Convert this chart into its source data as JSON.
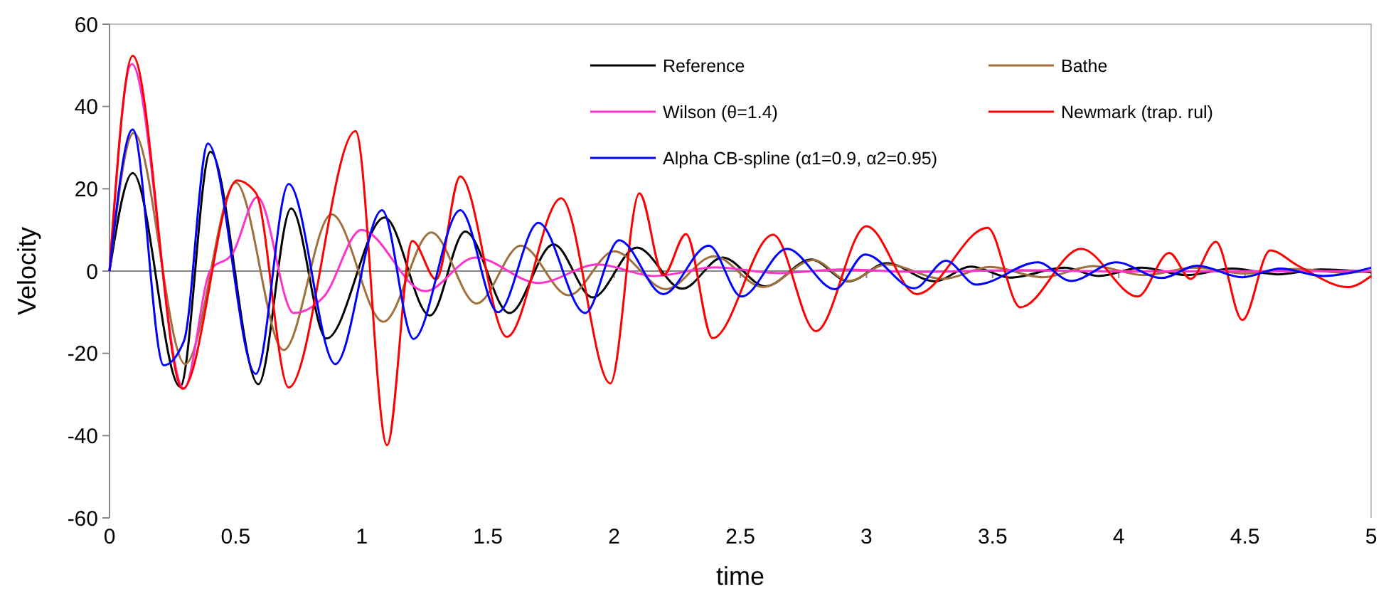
{
  "chart_data": {
    "type": "line",
    "xlabel": "time",
    "ylabel": "Velocity",
    "xlim": [
      0,
      5
    ],
    "ylim": [
      -60,
      60
    ],
    "xticks": [
      0,
      0.5,
      1,
      1.5,
      2,
      2.5,
      3,
      3.5,
      4,
      4.5,
      5
    ],
    "yticks": [
      -60,
      -40,
      -20,
      0,
      20,
      40,
      60
    ],
    "legend": "top",
    "marker": "none",
    "line_style": "solid",
    "series": [
      {
        "name": "Reference",
        "color": "#000000",
        "x": [
          0,
          0.092,
          0.28,
          0.4,
          0.59,
          0.72,
          0.86,
          1.09,
          1.27,
          1.41,
          1.585,
          1.76,
          1.915,
          2.09,
          2.27,
          2.43,
          2.6,
          2.78,
          2.93,
          3.08,
          3.27,
          3.415,
          3.57,
          3.785,
          3.92,
          4.09,
          4.27,
          4.45,
          4.63,
          4.8,
          5
        ],
        "values": [
          0,
          23.8,
          -28.1,
          29,
          -27.5,
          15.2,
          -16.4,
          13,
          -10.8,
          9.6,
          -10.2,
          6.5,
          -6.4,
          5.7,
          -4.3,
          3.3,
          -3.7,
          2.8,
          -2.5,
          1.9,
          -2.5,
          1.1,
          -1.6,
          0.8,
          -1.2,
          0.8,
          -1,
          0.6,
          -0.8,
          0.4,
          -0.3
        ]
      },
      {
        "name": "Bathe",
        "color": "#a0703c",
        "x": [
          0,
          0.096,
          0.3,
          0.5,
          0.69,
          0.88,
          1.085,
          1.275,
          1.455,
          1.63,
          1.82,
          2,
          2.205,
          2.395,
          2.59,
          2.79,
          2.93,
          3.08,
          3.305,
          3.49,
          3.7,
          3.9,
          4.1,
          4.3,
          4.5,
          4.7,
          4.9,
          5
        ],
        "values": [
          0,
          33.6,
          -22.6,
          21.5,
          -19.2,
          13.8,
          -12.3,
          9.4,
          -7.9,
          6.2,
          -5.9,
          4.8,
          -4.4,
          3.6,
          -3.9,
          2.7,
          -2.4,
          1.6,
          -1.9,
          1,
          -1.5,
          1.2,
          -1,
          0.8,
          -0.6,
          0.5,
          -0.4,
          0
        ]
      },
      {
        "name": "Wilson (θ=1.4)",
        "color": "#ff33cc",
        "x": [
          0,
          0.088,
          0.295,
          0.4,
          0.487,
          0.586,
          0.73,
          0.85,
          0.998,
          1.25,
          1.45,
          1.7,
          1.935,
          2.16,
          2.4,
          2.65,
          2.9,
          3.2,
          3.6,
          4,
          5
        ],
        "values": [
          0,
          50.3,
          -28.6,
          0.2,
          4.2,
          18,
          -10.2,
          -6.2,
          10,
          -4.9,
          3.3,
          -2.9,
          1.6,
          -1.2,
          0.9,
          -0.5,
          0.4,
          -0.2,
          0.2,
          -0.1,
          0
        ]
      },
      {
        "name": "Newmark (trap. rul)",
        "color": "#ff0000",
        "x": [
          0,
          0.092,
          0.29,
          0.505,
          0.58,
          0.71,
          0.975,
          1.1,
          1.2,
          1.295,
          1.39,
          1.575,
          1.79,
          1.985,
          2.1,
          2.195,
          2.285,
          2.39,
          2.63,
          2.8,
          3,
          3.2,
          3.48,
          3.61,
          3.85,
          4.075,
          4.2,
          4.285,
          4.385,
          4.49,
          4.6,
          4.71,
          4.91,
          5
        ],
        "values": [
          0,
          52.3,
          -28.6,
          22,
          19,
          -28.3,
          34,
          -42.3,
          7.3,
          -2,
          23,
          -16,
          17.7,
          -27.3,
          18.9,
          -1,
          9,
          -16.3,
          8.8,
          -14.6,
          10.9,
          -5.6,
          10.5,
          -8.8,
          5.4,
          -6.2,
          4.4,
          -1.9,
          7.1,
          -11.9,
          5,
          1.3,
          -3.9,
          -1.2
        ]
      },
      {
        "name": "Alpha CB-spline (α1=0.9, α2=0.95)",
        "color": "#0000ff",
        "x": [
          0,
          0.092,
          0.215,
          0.295,
          0.39,
          0.58,
          0.71,
          0.895,
          1.08,
          1.205,
          1.39,
          1.54,
          1.7,
          1.885,
          2.02,
          2.195,
          2.375,
          2.505,
          2.685,
          2.875,
          2.995,
          3.19,
          3.315,
          3.435,
          3.68,
          3.81,
          3.99,
          4.17,
          4.31,
          4.49,
          4.64,
          4.81,
          5
        ],
        "values": [
          0,
          34.4,
          -22.9,
          -17,
          31,
          -25,
          21.2,
          -22.6,
          14.8,
          -16.5,
          14.8,
          -10,
          11.7,
          -10.2,
          7.5,
          -5.6,
          6.2,
          -6.2,
          5.4,
          -4.4,
          4,
          -4.2,
          2.5,
          -3.3,
          2.1,
          -2.4,
          2.1,
          -1.7,
          1.3,
          -1.5,
          0.6,
          -1.2,
          0.8
        ]
      }
    ]
  }
}
